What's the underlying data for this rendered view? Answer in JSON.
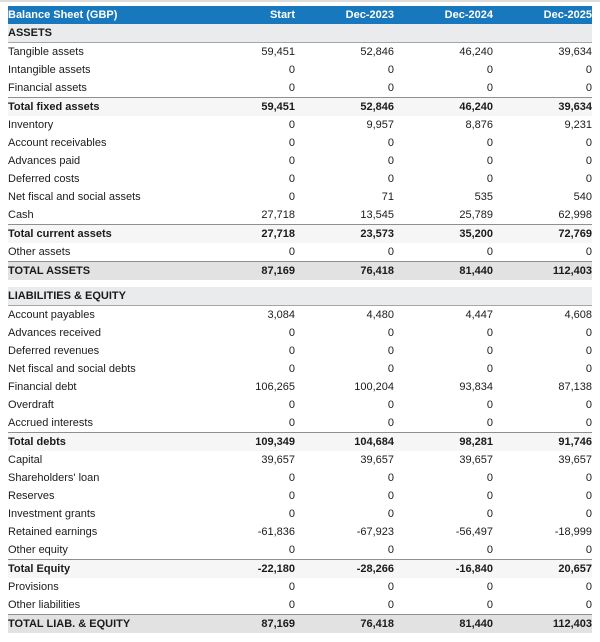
{
  "table": {
    "title": "Balance Sheet (GBP)",
    "columns": [
      "Start",
      "Dec-2023",
      "Dec-2024",
      "Dec-2025"
    ],
    "colors": {
      "header_bg": "#1878be",
      "header_text": "#ffffff",
      "section_bg": "#e9ebed",
      "subtotal_bg": "#f6f6f6",
      "total_bg": "#e2e2e2",
      "strip_bg": "#dcdcdc"
    },
    "rows": [
      {
        "type": "section",
        "label": "ASSETS"
      },
      {
        "type": "row",
        "label": "Tangible assets",
        "values": [
          "59,451",
          "52,846",
          "46,240",
          "39,634"
        ]
      },
      {
        "type": "row",
        "label": "Intangible assets",
        "values": [
          "0",
          "0",
          "0",
          "0"
        ]
      },
      {
        "type": "row",
        "label": "Financial assets",
        "values": [
          "0",
          "0",
          "0",
          "0"
        ]
      },
      {
        "type": "subtotal",
        "label": "Total fixed assets",
        "values": [
          "59,451",
          "52,846",
          "46,240",
          "39,634"
        ]
      },
      {
        "type": "row",
        "label": "Inventory",
        "values": [
          "0",
          "9,957",
          "8,876",
          "9,231"
        ]
      },
      {
        "type": "row",
        "label": "Account receivables",
        "values": [
          "0",
          "0",
          "0",
          "0"
        ]
      },
      {
        "type": "row",
        "label": "Advances paid",
        "values": [
          "0",
          "0",
          "0",
          "0"
        ]
      },
      {
        "type": "row",
        "label": "Deferred costs",
        "values": [
          "0",
          "0",
          "0",
          "0"
        ]
      },
      {
        "type": "row",
        "label": "Net fiscal and social assets",
        "values": [
          "0",
          "71",
          "535",
          "540"
        ]
      },
      {
        "type": "row",
        "label": "Cash",
        "values": [
          "27,718",
          "13,545",
          "25,789",
          "62,998"
        ]
      },
      {
        "type": "subtotal",
        "label": "Total current assets",
        "values": [
          "27,718",
          "23,573",
          "35,200",
          "72,769"
        ]
      },
      {
        "type": "row",
        "label": "Other assets",
        "values": [
          "0",
          "0",
          "0",
          "0"
        ]
      },
      {
        "type": "total",
        "label": "TOTAL ASSETS",
        "values": [
          "87,169",
          "76,418",
          "81,440",
          "112,403"
        ]
      },
      {
        "type": "gap"
      },
      {
        "type": "section",
        "label": "LIABILITIES & EQUITY"
      },
      {
        "type": "row",
        "label": "Account payables",
        "values": [
          "3,084",
          "4,480",
          "4,447",
          "4,608"
        ]
      },
      {
        "type": "row",
        "label": "Advances received",
        "values": [
          "0",
          "0",
          "0",
          "0"
        ]
      },
      {
        "type": "row",
        "label": "Deferred revenues",
        "values": [
          "0",
          "0",
          "0",
          "0"
        ]
      },
      {
        "type": "row",
        "label": "Net fiscal and social debts",
        "values": [
          "0",
          "0",
          "0",
          "0"
        ]
      },
      {
        "type": "row",
        "label": "Financial debt",
        "values": [
          "106,265",
          "100,204",
          "93,834",
          "87,138"
        ]
      },
      {
        "type": "row",
        "label": "Overdraft",
        "values": [
          "0",
          "0",
          "0",
          "0"
        ]
      },
      {
        "type": "row",
        "label": "Accrued interests",
        "values": [
          "0",
          "0",
          "0",
          "0"
        ]
      },
      {
        "type": "subtotal",
        "label": "Total debts",
        "values": [
          "109,349",
          "104,684",
          "98,281",
          "91,746"
        ]
      },
      {
        "type": "row",
        "label": "Capital",
        "values": [
          "39,657",
          "39,657",
          "39,657",
          "39,657"
        ]
      },
      {
        "type": "row",
        "label": "Shareholders' loan",
        "values": [
          "0",
          "0",
          "0",
          "0"
        ]
      },
      {
        "type": "row",
        "label": "Reserves",
        "values": [
          "0",
          "0",
          "0",
          "0"
        ]
      },
      {
        "type": "row",
        "label": "Investment grants",
        "values": [
          "0",
          "0",
          "0",
          "0"
        ]
      },
      {
        "type": "row",
        "label": "Retained earnings",
        "values": [
          "-61,836",
          "-67,923",
          "-56,497",
          "-18,999"
        ]
      },
      {
        "type": "row",
        "label": "Other equity",
        "values": [
          "0",
          "0",
          "0",
          "0"
        ]
      },
      {
        "type": "subtotal",
        "label": "Total Equity",
        "values": [
          "-22,180",
          "-28,266",
          "-16,840",
          "20,657"
        ]
      },
      {
        "type": "row",
        "label": "Provisions",
        "values": [
          "0",
          "0",
          "0",
          "0"
        ]
      },
      {
        "type": "row",
        "label": "Other liabilities",
        "values": [
          "0",
          "0",
          "0",
          "0"
        ]
      },
      {
        "type": "total",
        "label": "TOTAL LIAB. & EQUITY",
        "values": [
          "87,169",
          "76,418",
          "81,440",
          "112,403"
        ]
      }
    ]
  }
}
